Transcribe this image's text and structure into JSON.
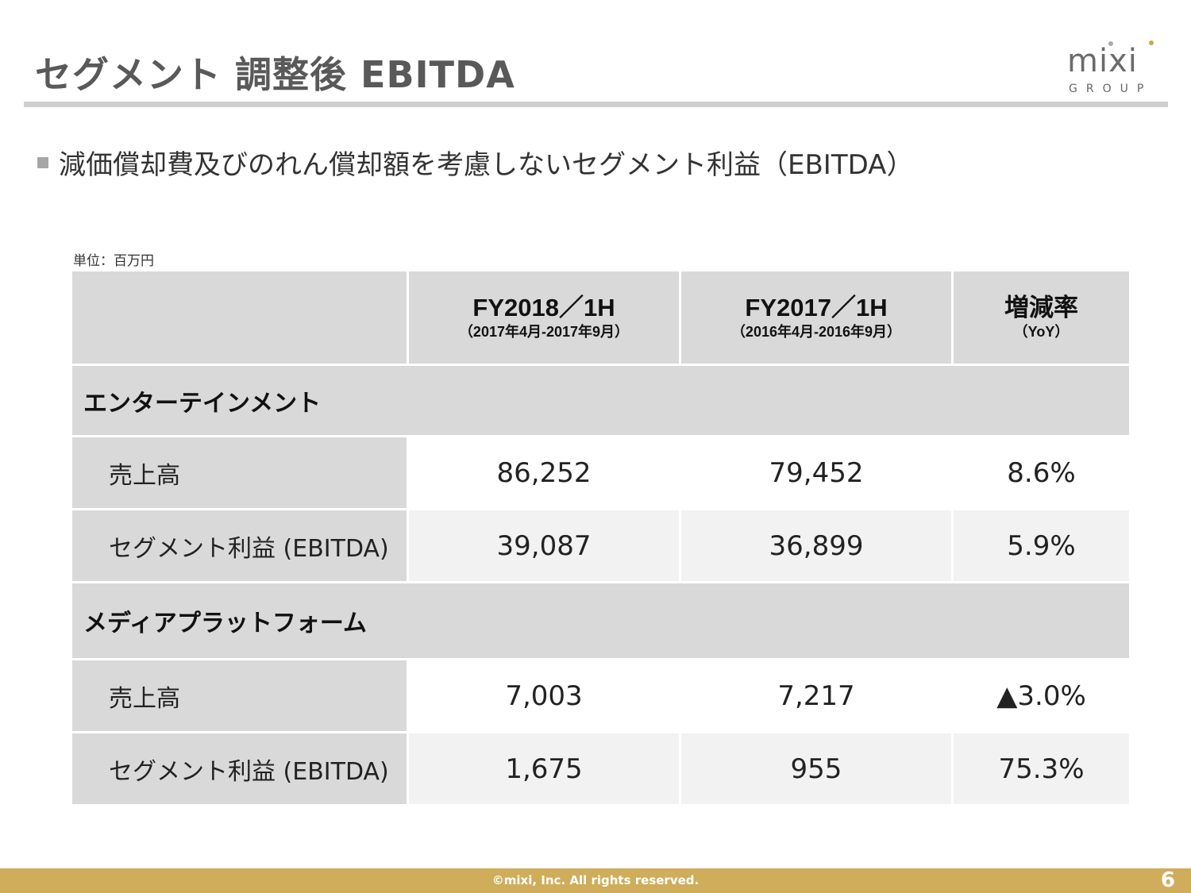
{
  "title": "セグメント 調整後 EBITDA",
  "logo": {
    "word": "mixi",
    "sub": "GROUP"
  },
  "bullet": "減価償却費及びのれん償却額を考慮しないセグメント利益（EBITDA）",
  "unit_label": "単位：百万円",
  "table": {
    "columns": [
      {
        "main": "FY2018／1H",
        "sub": "（2017年4月-2017年9月）"
      },
      {
        "main": "FY2017／1H",
        "sub": "（2016年4月-2016年9月）"
      },
      {
        "main": "増減率",
        "sub": "（YoY）"
      }
    ],
    "sections": [
      {
        "name": "エンターテインメント",
        "rows": [
          {
            "label": "売上高",
            "values": [
              "86,252",
              "79,452",
              "8.6%"
            ]
          },
          {
            "label": "セグメント利益 (EBITDA)",
            "values": [
              "39,087",
              "36,899",
              "5.9%"
            ]
          }
        ]
      },
      {
        "name": "メディアプラットフォーム",
        "rows": [
          {
            "label": "売上高",
            "values": [
              "7,003",
              "7,217",
              "▲3.0%"
            ]
          },
          {
            "label": "セグメント利益 (EBITDA)",
            "values": [
              "1,675",
              "955",
              "75.3%"
            ]
          }
        ]
      }
    ]
  },
  "footer": {
    "copyright": "©mixi, Inc. All rights reserved.",
    "page": "6"
  },
  "colors": {
    "gold": "#cfad5a",
    "header_gray": "#d9d9d9",
    "title_gray": "#595959"
  }
}
